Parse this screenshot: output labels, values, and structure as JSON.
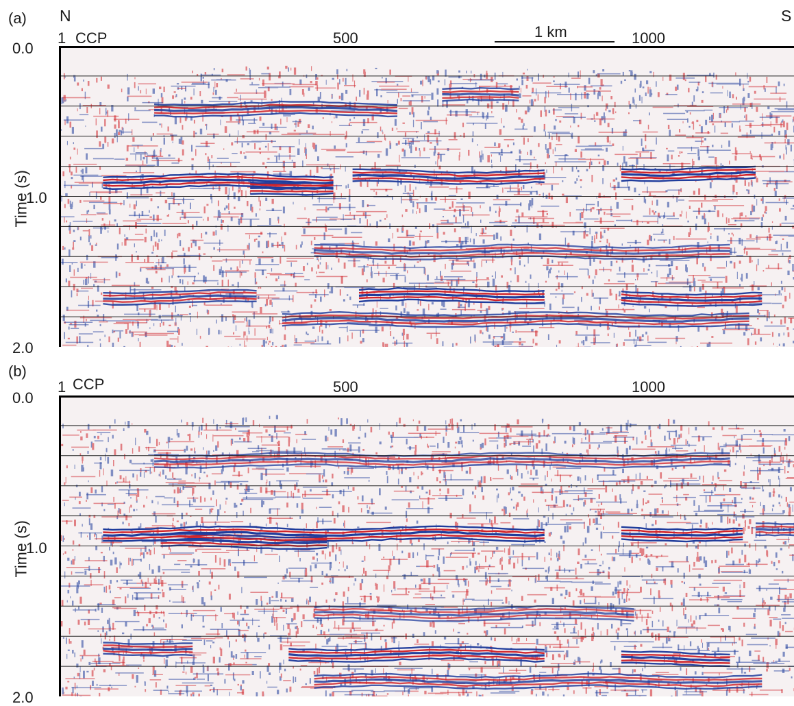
{
  "figure": {
    "compass": {
      "left": "N",
      "right": "S"
    },
    "scale_bar": {
      "label": "1 km"
    },
    "colors": {
      "positive": "#d0232a",
      "negative": "#1f3c9c",
      "background": "#f6f1f2",
      "frame": "#000000",
      "gridline": "#222222"
    },
    "panels": [
      {
        "id": "a",
        "label": "(a)",
        "x_axis": {
          "start_label": "1",
          "axis_name": "CCP",
          "ticks": [
            "500",
            "1000"
          ],
          "tick_values": [
            500,
            1000
          ],
          "range": [
            1,
            1150
          ]
        },
        "y_axis": {
          "label": "Time (s)",
          "ticks": [
            "0.0",
            "1.0",
            "2.0"
          ],
          "tick_values": [
            0.0,
            1.0,
            2.0
          ],
          "range": [
            0.0,
            2.0
          ]
        },
        "gridlines_s": [
          0.2,
          0.4,
          0.6,
          0.8,
          1.0,
          1.2,
          1.4,
          1.6,
          1.8
        ],
        "reflectors": [
          {
            "t": 0.9,
            "from": 70,
            "to": 430,
            "amp": 1.0
          },
          {
            "t": 0.94,
            "from": 300,
            "to": 430,
            "amp": 0.9
          },
          {
            "t": 0.87,
            "from": 460,
            "to": 760,
            "amp": 0.9
          },
          {
            "t": 0.85,
            "from": 880,
            "to": 1090,
            "amp": 1.0
          },
          {
            "t": 0.42,
            "from": 150,
            "to": 530,
            "amp": 0.7
          },
          {
            "t": 0.33,
            "from": 600,
            "to": 720,
            "amp": 0.6
          },
          {
            "t": 1.67,
            "from": 70,
            "to": 310,
            "amp": 0.7
          },
          {
            "t": 1.66,
            "from": 470,
            "to": 760,
            "amp": 1.0
          },
          {
            "t": 1.68,
            "from": 880,
            "to": 1100,
            "amp": 0.9
          },
          {
            "t": 1.82,
            "from": 350,
            "to": 1080,
            "amp": 0.6
          },
          {
            "t": 1.37,
            "from": 400,
            "to": 1050,
            "amp": 0.45
          }
        ]
      },
      {
        "id": "b",
        "label": "(b)",
        "x_axis": {
          "start_label": "1",
          "axis_name": "CCP",
          "ticks": [
            "500",
            "1000"
          ],
          "tick_values": [
            500,
            1000
          ],
          "range": [
            1,
            1150
          ]
        },
        "y_axis": {
          "label": "Time (s)",
          "ticks": [
            "0.0",
            "1.0",
            "2.0"
          ],
          "tick_values": [
            0.0,
            1.0,
            2.0
          ],
          "range": [
            0.0,
            2.0
          ]
        },
        "gridlines_s": [
          0.2,
          0.4,
          0.6,
          0.8,
          1.0,
          1.2,
          1.4,
          1.6,
          1.8
        ],
        "reflectors": [
          {
            "t": 0.92,
            "from": 70,
            "to": 760,
            "amp": 1.0
          },
          {
            "t": 0.97,
            "from": 160,
            "to": 420,
            "amp": 0.9
          },
          {
            "t": 0.92,
            "from": 880,
            "to": 1070,
            "amp": 1.0
          },
          {
            "t": 0.9,
            "from": 1090,
            "to": 1150,
            "amp": 0.6
          },
          {
            "t": 0.43,
            "from": 150,
            "to": 1050,
            "amp": 0.45
          },
          {
            "t": 1.68,
            "from": 70,
            "to": 210,
            "amp": 0.7
          },
          {
            "t": 1.72,
            "from": 360,
            "to": 760,
            "amp": 0.9
          },
          {
            "t": 1.75,
            "from": 880,
            "to": 1050,
            "amp": 0.9
          },
          {
            "t": 1.9,
            "from": 400,
            "to": 1100,
            "amp": 0.6
          },
          {
            "t": 1.45,
            "from": 400,
            "to": 900,
            "amp": 0.4
          }
        ]
      }
    ]
  }
}
